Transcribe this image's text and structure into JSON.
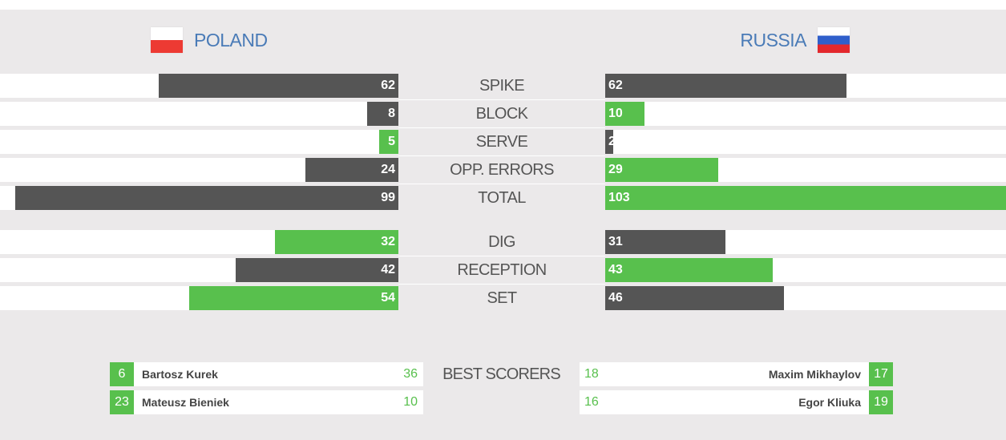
{
  "teams": {
    "home": {
      "name": "POLAND",
      "flag_icon": "poland-flag-icon"
    },
    "away": {
      "name": "RUSSIA",
      "flag_icon": "russia-flag-icon"
    }
  },
  "colors": {
    "dark": "#555555",
    "green": "#58c04d",
    "team_name": "#4a7bb7"
  },
  "scale_max": 103,
  "stats_group_1": [
    {
      "label": "SPIKE",
      "home": 62,
      "away": 62,
      "leader": "none"
    },
    {
      "label": "BLOCK",
      "home": 8,
      "away": 10,
      "leader": "away"
    },
    {
      "label": "SERVE",
      "home": 5,
      "away": 2,
      "leader": "home"
    },
    {
      "label": "OPP. ERRORS",
      "home": 24,
      "away": 29,
      "leader": "away"
    },
    {
      "label": "TOTAL",
      "home": 99,
      "away": 103,
      "leader": "away"
    }
  ],
  "stats_group_2": [
    {
      "label": "DIG",
      "home": 32,
      "away": 31,
      "leader": "home"
    },
    {
      "label": "RECEPTION",
      "home": 42,
      "away": 43,
      "leader": "away"
    },
    {
      "label": "SET",
      "home": 54,
      "away": 46,
      "leader": "home"
    }
  ],
  "best_scorers": {
    "label": "BEST SCORERS",
    "home": [
      {
        "number": "6",
        "name": "Bartosz Kurek",
        "points": "36"
      },
      {
        "number": "23",
        "name": "Mateusz Bieniek",
        "points": "10"
      }
    ],
    "away": [
      {
        "number": "17",
        "name": "Maxim Mikhaylov",
        "points": "18"
      },
      {
        "number": "19",
        "name": "Egor Kliuka",
        "points": "16"
      }
    ]
  }
}
